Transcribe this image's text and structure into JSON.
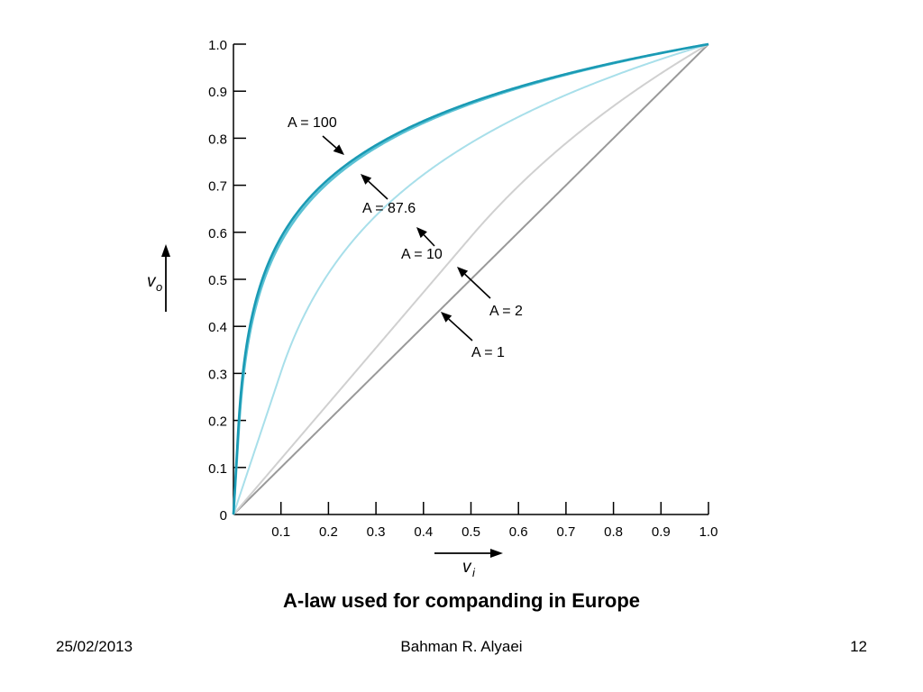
{
  "chart_data": {
    "type": "line",
    "xlabel": "v",
    "xlabel_sub": "i",
    "ylabel": "v",
    "ylabel_sub": "o",
    "xlim": [
      0,
      1
    ],
    "ylim": [
      0,
      1
    ],
    "x_ticks": [
      "0.1",
      "0.2",
      "0.3",
      "0.4",
      "0.5",
      "0.6",
      "0.7",
      "0.8",
      "0.9",
      "1.0"
    ],
    "y_ticks": [
      "0",
      "0.1",
      "0.2",
      "0.3",
      "0.4",
      "0.5",
      "0.6",
      "0.7",
      "0.8",
      "0.9",
      "1.0"
    ],
    "grid": false,
    "series": [
      {
        "name": "A = 1",
        "A": 1,
        "color": "#999999"
      },
      {
        "name": "A = 2",
        "A": 2,
        "color": "#d0d0d0"
      },
      {
        "name": "A = 10",
        "A": 10,
        "color": "#a8dfea"
      },
      {
        "name": "A = 87.6",
        "A": 87.6,
        "color": "#5cc2d4"
      },
      {
        "name": "A = 100",
        "A": 100,
        "color": "#1a9ab4"
      }
    ],
    "annotations": [
      {
        "text": "A = 100",
        "series": "A = 100"
      },
      {
        "text": "A = 87.6",
        "series": "A = 87.6"
      },
      {
        "text": "A = 10",
        "series": "A = 10"
      },
      {
        "text": "A = 2",
        "series": "A = 2"
      },
      {
        "text": "A = 1",
        "series": "A = 1"
      }
    ]
  },
  "caption": "A-law used for companding in Europe",
  "footer": {
    "date": "25/02/2013",
    "author": "Bahman R. Alyaei",
    "page": "12"
  }
}
